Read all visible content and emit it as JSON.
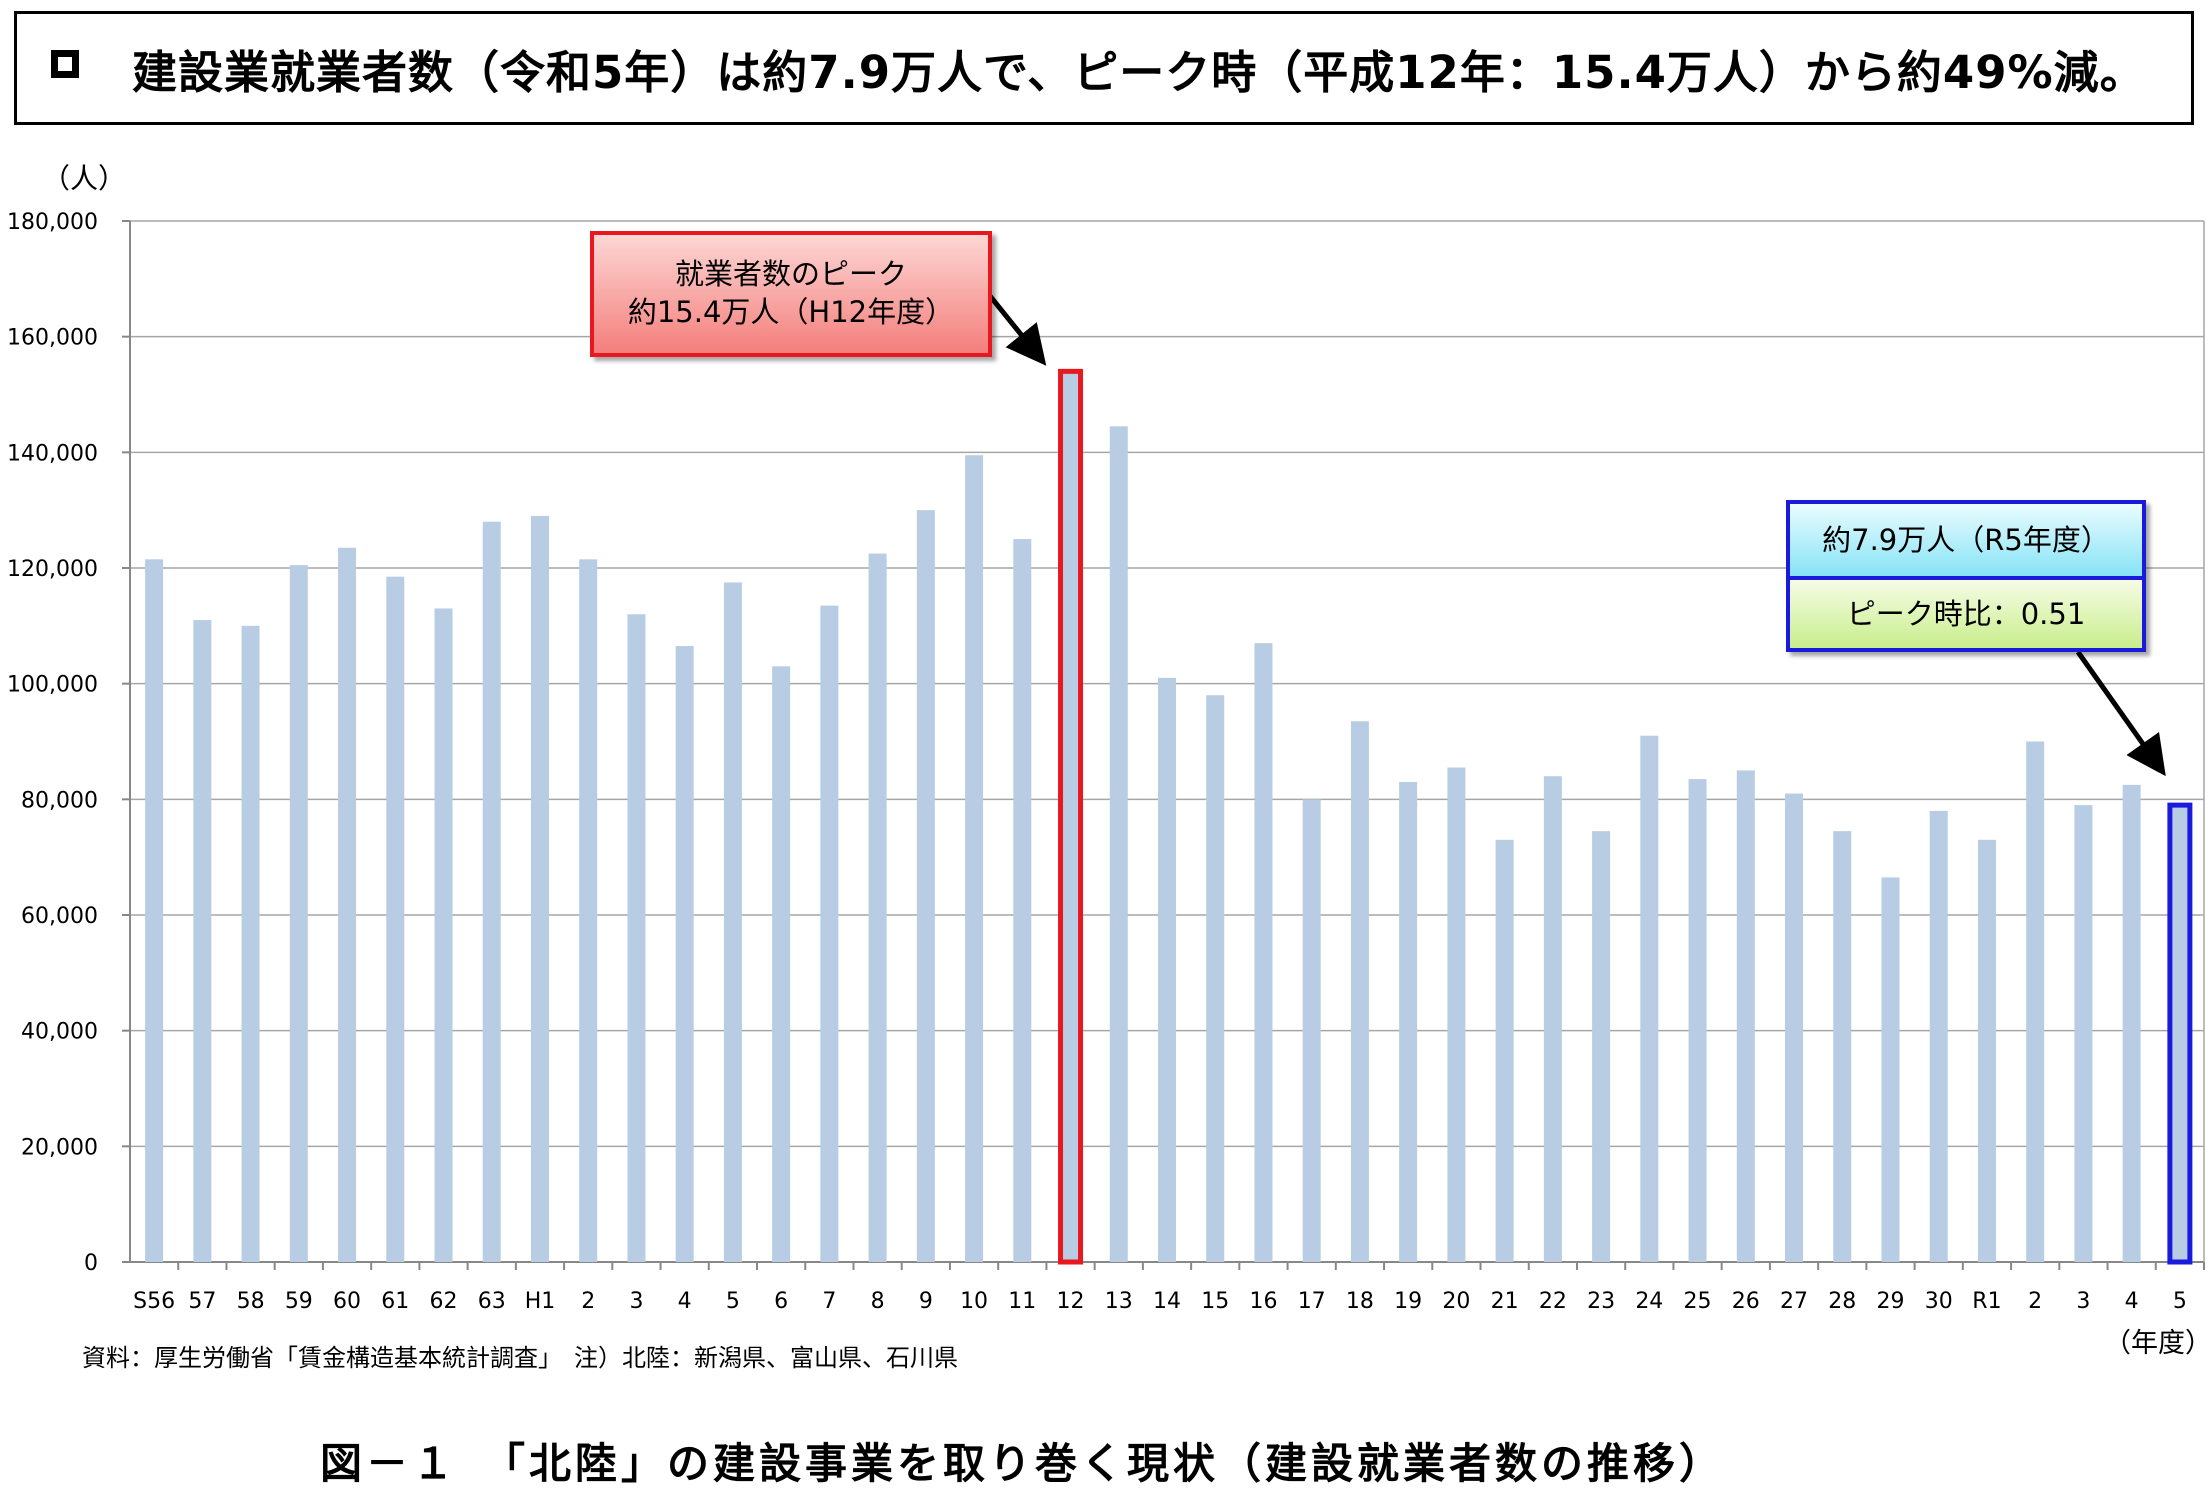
{
  "headline": "建設業就業者数（令和5年）は約7.9万人で、ピーク時（平成12年：15.4万人）から約49%減。",
  "chart_data": {
    "type": "bar",
    "ylabel": "（人）",
    "xlabel": "（年度）",
    "ylim": [
      0,
      180000
    ],
    "yticks": [
      0,
      20000,
      40000,
      60000,
      80000,
      100000,
      120000,
      140000,
      160000,
      180000
    ],
    "ytick_labels": [
      "0",
      "20,000",
      "40,000",
      "60,000",
      "80,000",
      "100,000",
      "120,000",
      "140,000",
      "160,000",
      "180,000"
    ],
    "grid": true,
    "bar_color": "#b8cce4",
    "categories": [
      "S56",
      "57",
      "58",
      "59",
      "60",
      "61",
      "62",
      "63",
      "H1",
      "2",
      "3",
      "4",
      "5",
      "6",
      "7",
      "8",
      "9",
      "10",
      "11",
      "12",
      "13",
      "14",
      "15",
      "16",
      "17",
      "18",
      "19",
      "20",
      "21",
      "22",
      "23",
      "24",
      "25",
      "26",
      "27",
      "28",
      "29",
      "30",
      "R1",
      "2",
      "3",
      "4",
      "5"
    ],
    "values": [
      121500,
      111000,
      110000,
      120500,
      123500,
      118500,
      113000,
      128000,
      129000,
      121500,
      112000,
      106500,
      117500,
      103000,
      113500,
      122500,
      130000,
      139500,
      125000,
      154000,
      144500,
      101000,
      98000,
      107000,
      80000,
      93500,
      83000,
      85500,
      73000,
      84000,
      74500,
      91000,
      83500,
      85000,
      81000,
      74500,
      66500,
      78000,
      73000,
      90000,
      79000,
      82500,
      79000
    ],
    "highlights": [
      {
        "index": 19,
        "color": "#e8191e"
      },
      {
        "index": 42,
        "color": "#1a1adf"
      }
    ]
  },
  "callouts": {
    "peak": {
      "line1": "就業者数のピーク",
      "line2": "約15.4万人（H12年度）"
    },
    "latest": {
      "line1": "約7.9万人（R5年度）",
      "line2": "ピーク時比：0.51"
    }
  },
  "source_note": "資料：厚生労働省「賃金構造基本統計調査」　注）北陸：新潟県、富山県、石川県",
  "figure_caption": "図－１　「北陸」の建設事業を取り巻く現状（建設就業者数の推移）"
}
